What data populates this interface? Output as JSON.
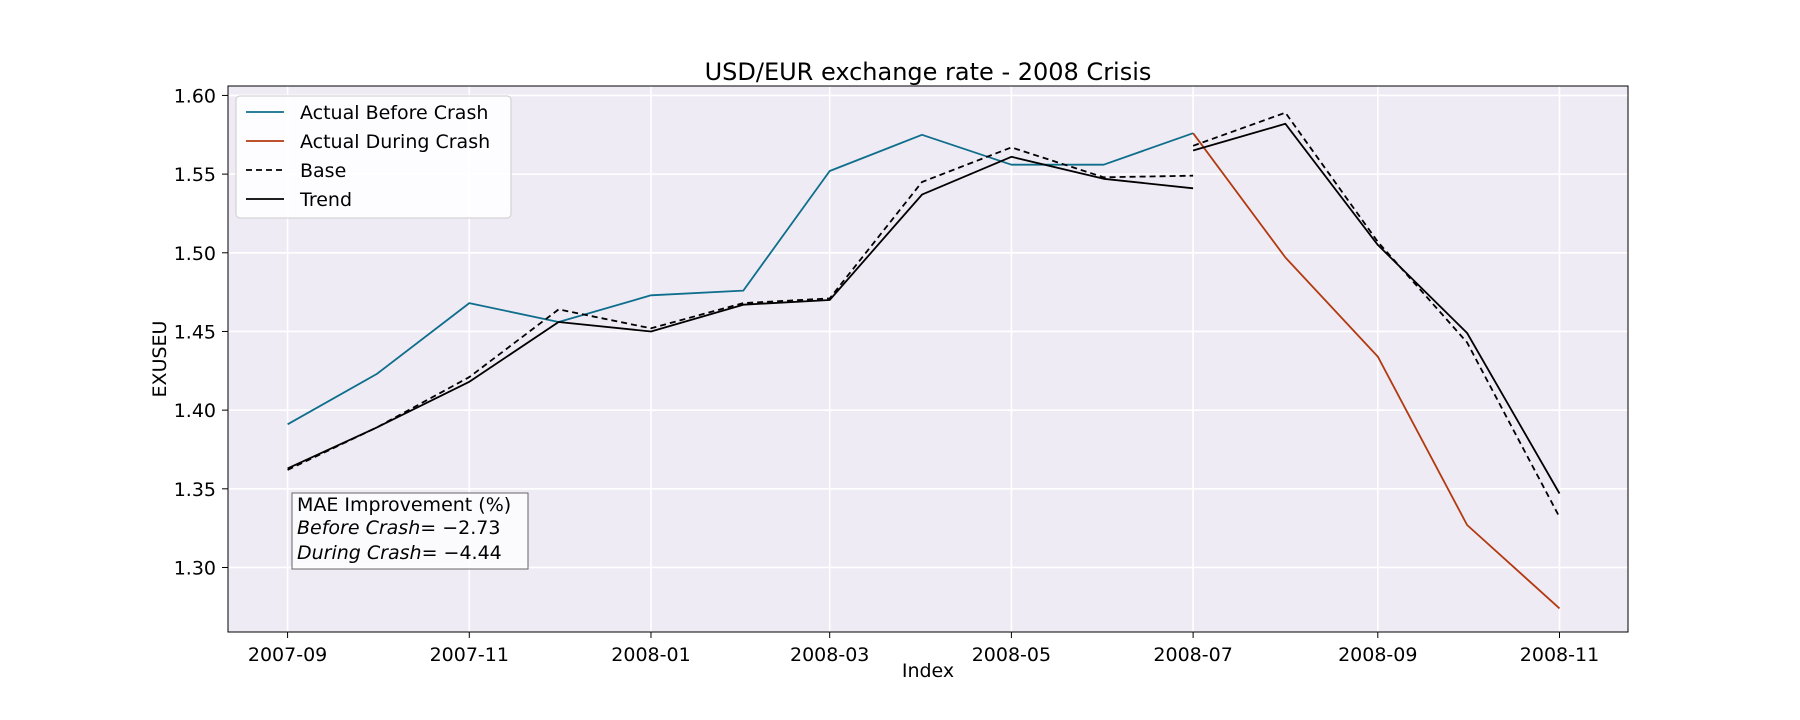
{
  "chart_data": {
    "type": "line",
    "title": "USD/EUR exchange rate - 2008 Crisis",
    "xlabel": "Index",
    "ylabel": "EXUSEU",
    "x_tick_labels": [
      "2007-09",
      "2007-11",
      "2008-01",
      "2008-03",
      "2008-05",
      "2008-07",
      "2008-09",
      "2008-11"
    ],
    "y_tick_labels": [
      "1.30",
      "1.35",
      "1.40",
      "1.45",
      "1.50",
      "1.55",
      "1.60"
    ],
    "y_ticks": [
      1.3,
      1.35,
      1.4,
      1.45,
      1.5,
      1.55,
      1.6
    ],
    "xlim": [
      "2007-08-12",
      "2008-11-24"
    ],
    "ylim": [
      1.259,
      1.606
    ],
    "grid": true,
    "legend_position": "top-left",
    "series": [
      {
        "name": "Actual Before Crash",
        "color": "#0e6e8c",
        "style": "solid",
        "x": [
          "2007-09",
          "2007-10",
          "2007-11",
          "2007-12",
          "2008-01",
          "2008-02",
          "2008-03",
          "2008-04",
          "2008-05",
          "2008-06",
          "2008-07"
        ],
        "values": [
          1.391,
          1.423,
          1.468,
          1.456,
          1.473,
          1.476,
          1.552,
          1.575,
          1.556,
          1.556,
          1.576
        ]
      },
      {
        "name": "Actual During Crash",
        "color": "#b23a10",
        "style": "solid",
        "x": [
          "2008-07",
          "2008-08",
          "2008-09",
          "2008-10",
          "2008-11"
        ],
        "values": [
          1.576,
          1.497,
          1.434,
          1.327,
          1.274
        ]
      },
      {
        "name": "Base",
        "color": "#000000",
        "style": "dashed",
        "segments": [
          {
            "x": [
              "2007-09",
              "2007-10",
              "2007-11",
              "2007-12",
              "2008-01",
              "2008-02",
              "2008-03",
              "2008-04",
              "2008-05",
              "2008-06",
              "2008-07"
            ],
            "values": [
              1.362,
              1.389,
              1.421,
              1.464,
              1.452,
              1.468,
              1.471,
              1.545,
              1.567,
              1.548,
              1.549
            ]
          },
          {
            "x": [
              "2008-07",
              "2008-08",
              "2008-09",
              "2008-10",
              "2008-11"
            ],
            "values": [
              1.568,
              1.589,
              1.507,
              1.443,
              1.332
            ]
          }
        ]
      },
      {
        "name": "Trend",
        "color": "#000000",
        "style": "solid",
        "segments": [
          {
            "x": [
              "2007-09",
              "2007-10",
              "2007-11",
              "2007-12",
              "2008-01",
              "2008-02",
              "2008-03",
              "2008-04",
              "2008-05",
              "2008-06",
              "2008-07"
            ],
            "values": [
              1.363,
              1.389,
              1.418,
              1.456,
              1.45,
              1.467,
              1.47,
              1.537,
              1.561,
              1.547,
              1.541
            ]
          },
          {
            "x": [
              "2008-07",
              "2008-08",
              "2008-09",
              "2008-10",
              "2008-11"
            ],
            "values": [
              1.565,
              1.582,
              1.505,
              1.449,
              1.347
            ]
          }
        ]
      }
    ],
    "annotation": {
      "title": "MAE Improvement (%)",
      "before_label": "Before Crash",
      "before_value": "= −2.73",
      "during_label": "During Crash",
      "during_value": "= −4.44"
    }
  },
  "colors": {
    "plot_background": "#efebf5",
    "grid": "#ffffff"
  }
}
